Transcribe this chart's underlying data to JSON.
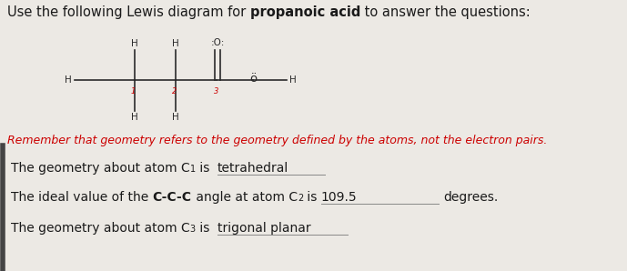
{
  "bg_color": "#ece9e4",
  "text_color": "#1a1a1a",
  "diagram_color": "#2a2a2a",
  "diagram_red": "#cc0000",
  "remember_color": "#cc0000",
  "title_normal1": "Use the following Lewis diagram for ",
  "title_bold": "propanoic acid",
  "title_normal2": " to answer the questions:",
  "remember_text": "Remember that geometry refers to the geometry defined by the atoms, not the electron pairs.",
  "line1_answer": "tetrahedral",
  "line2_answer": "109.5",
  "line2_end": "degrees.",
  "line3_answer": "trigonal planar",
  "left_bar_color": "#555555"
}
